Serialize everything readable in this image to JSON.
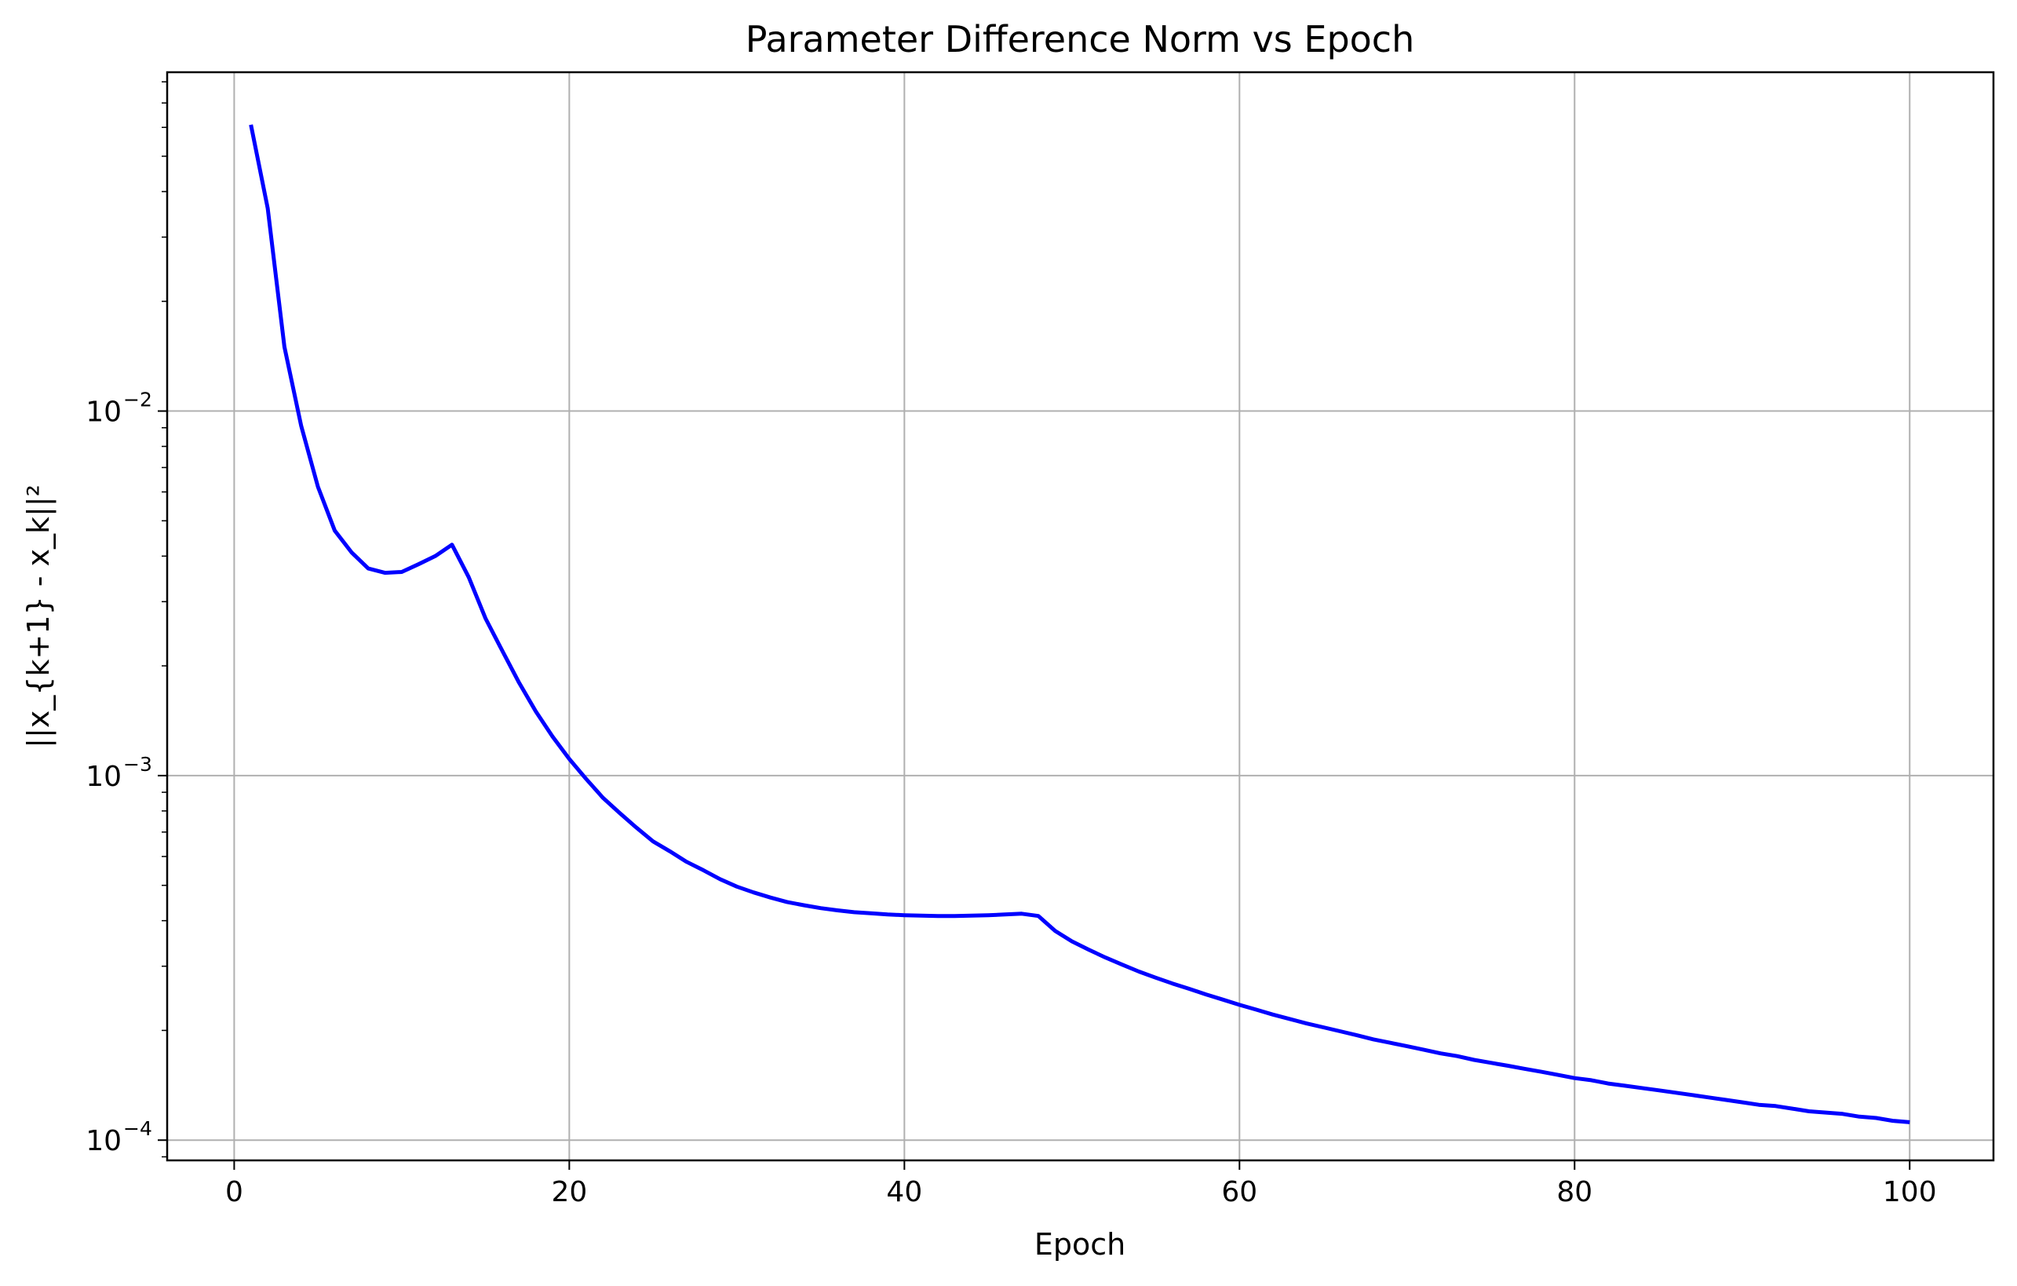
{
  "chart_data": {
    "type": "line",
    "title": "Parameter Difference Norm vs Epoch",
    "xlabel": "Epoch",
    "ylabel": "||x_{k+1} - x_k||²",
    "yscale": "log",
    "grid": true,
    "xlim": [
      -4,
      105
    ],
    "ylim": [
      8.8e-05,
      0.085
    ],
    "x_ticks": [
      {
        "value": 0,
        "label": "0"
      },
      {
        "value": 20,
        "label": "20"
      },
      {
        "value": 40,
        "label": "40"
      },
      {
        "value": 60,
        "label": "60"
      },
      {
        "value": 80,
        "label": "80"
      },
      {
        "value": 100,
        "label": "100"
      }
    ],
    "y_ticks": [
      {
        "value": 0.0001,
        "base": "10",
        "exp": "−4"
      },
      {
        "value": 0.001,
        "base": "10",
        "exp": "−3"
      },
      {
        "value": 0.01,
        "base": "10",
        "exp": "−2"
      }
    ],
    "series": [
      {
        "color": "#0000ff",
        "x": [
          1,
          2,
          3,
          4,
          5,
          6,
          7,
          8,
          9,
          10,
          11,
          12,
          13,
          14,
          15,
          16,
          17,
          18,
          19,
          20,
          21,
          22,
          23,
          24,
          25,
          26,
          27,
          28,
          29,
          30,
          31,
          32,
          33,
          34,
          35,
          36,
          37,
          38,
          39,
          40,
          41,
          42,
          43,
          44,
          45,
          46,
          47,
          48,
          49,
          50,
          51,
          52,
          53,
          54,
          55,
          56,
          57,
          58,
          59,
          60,
          61,
          62,
          63,
          64,
          65,
          66,
          67,
          68,
          69,
          70,
          71,
          72,
          73,
          74,
          75,
          76,
          77,
          78,
          79,
          80,
          81,
          82,
          83,
          84,
          85,
          86,
          87,
          88,
          89,
          90,
          91,
          92,
          93,
          94,
          95,
          96,
          97,
          98,
          99,
          100
        ],
        "y": [
          0.061,
          0.036,
          0.015,
          0.0091,
          0.0062,
          0.0047,
          0.0041,
          0.0037,
          0.0036,
          0.00362,
          0.0038,
          0.004,
          0.0043,
          0.0035,
          0.0027,
          0.0022,
          0.0018,
          0.0015,
          0.00128,
          0.00111,
          0.00098,
          0.00087,
          0.00079,
          0.00072,
          0.00066,
          0.00062,
          0.00058,
          0.00055,
          0.00052,
          0.000496,
          0.000478,
          0.000463,
          0.00045,
          0.000441,
          0.000433,
          0.000427,
          0.000422,
          0.000419,
          0.000416,
          0.000414,
          0.000413,
          0.000412,
          0.000412,
          0.000413,
          0.000414,
          0.000416,
          0.000418,
          0.000412,
          0.000375,
          0.000351,
          0.000333,
          0.000317,
          0.000303,
          0.00029,
          0.000279,
          0.000269,
          0.00026,
          0.000251,
          0.000243,
          0.000235,
          0.000228,
          0.000221,
          0.000215,
          0.000209,
          0.000204,
          0.000199,
          0.000194,
          0.000189,
          0.000185,
          0.000181,
          0.000177,
          0.000173,
          0.00017,
          0.000166,
          0.000163,
          0.00016,
          0.000157,
          0.000154,
          0.000151,
          0.000148,
          0.000146,
          0.000143,
          0.000141,
          0.000139,
          0.000137,
          0.000135,
          0.000133,
          0.000131,
          0.000129,
          0.000127,
          0.000125,
          0.000124,
          0.000122,
          0.00012,
          0.000119,
          0.000118,
          0.000116,
          0.000115,
          0.000113,
          0.000112
        ]
      }
    ]
  }
}
